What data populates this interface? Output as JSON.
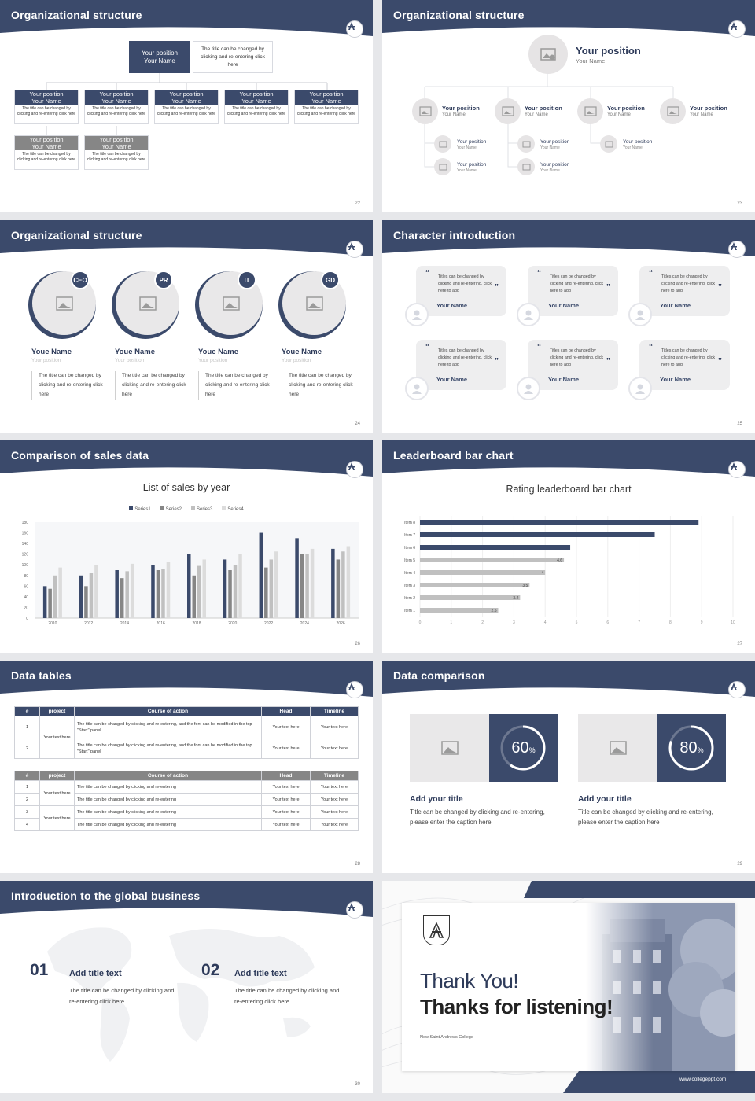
{
  "colors": {
    "navy": "#3b4a6b",
    "gray": "#868686",
    "light": "#e9e8e9"
  },
  "slides": {
    "s22": {
      "title": "Organizational structure",
      "page": "22",
      "top_box": {
        "position": "Your position",
        "name": "Your Name",
        "desc": "The title can be changed by clicking and re-entering click here"
      },
      "boxes": [
        {
          "position": "Your position",
          "name": "Your Name",
          "desc": "The title can be changed by clicking and re-entering click here"
        },
        {
          "position": "Your position",
          "name": "Your Name",
          "desc": "The title can be changed by clicking and re-entering click here"
        },
        {
          "position": "Your position",
          "name": "Your Name",
          "desc": "The title can be changed by clicking and re-entering click here"
        },
        {
          "position": "Your position",
          "name": "Your Name",
          "desc": "The title can be changed by clicking and re-entering click here"
        },
        {
          "position": "Your position",
          "name": "Your Name",
          "desc": "The title can be changed by clicking and re-entering click here"
        },
        {
          "position": "Your position",
          "name": "Your Name",
          "desc": "The title can be changed by clicking and re-entering click here"
        },
        {
          "position": "Your position",
          "name": "Your Name",
          "desc": "The title can be changed by clicking and re-entering click here"
        }
      ]
    },
    "s23": {
      "title": "Organizational structure",
      "page": "23",
      "top": {
        "position": "Your position",
        "name": "Your Name"
      },
      "level2": [
        {
          "position": "Your position",
          "name": "Your Name"
        },
        {
          "position": "Your position",
          "name": "Your Name"
        },
        {
          "position": "Your position",
          "name": "Your Name"
        },
        {
          "position": "Your position",
          "name": "Your Name"
        }
      ],
      "level3": [
        {
          "position": "Your position",
          "name": "Your Name"
        },
        {
          "position": "Your position",
          "name": "Your Name"
        },
        {
          "position": "Your position",
          "name": "Your Name"
        },
        {
          "position": "Your position",
          "name": "Your Name"
        },
        {
          "position": "Your position",
          "name": "Your Name"
        }
      ]
    },
    "s24": {
      "title": "Organizational structure",
      "page": "24",
      "people": [
        {
          "role": "CEO",
          "name": "Youe Name",
          "position": "Your position",
          "desc": "The title can be changed by clicking and re-entering click here"
        },
        {
          "role": "PR",
          "name": "Youe Name",
          "position": "Your position",
          "desc": "The title can be changed by clicking and re-entering click here"
        },
        {
          "role": "IT",
          "name": "Youe Name",
          "position": "Your position",
          "desc": "The title can be changed by clicking and re-entering click here"
        },
        {
          "role": "GD",
          "name": "Youe Name",
          "position": "Your position",
          "desc": "The title can be changed by clicking and re-entering click here"
        }
      ]
    },
    "s25": {
      "title": "Character introduction",
      "page": "25",
      "cards": [
        {
          "text": "Titles can be changed by clicking and re-entering, click here to add",
          "name": "Your Name"
        },
        {
          "text": "Titles can be changed by clicking and re-entering, click here to add",
          "name": "Your Name"
        },
        {
          "text": "Titles can be changed by clicking and re-entering, click here to add",
          "name": "Your Name"
        },
        {
          "text": "Titles can be changed by clicking and re-entering, click here to add",
          "name": "Your Name"
        },
        {
          "text": "Titles can be changed by clicking and re-entering, click here to add",
          "name": "Your Name"
        },
        {
          "text": "Titles can be changed by clicking and re-entering, click here to add",
          "name": "Your Name"
        }
      ]
    },
    "s26": {
      "title": "Comparison of sales data",
      "page": "26"
    },
    "s27": {
      "title": "Leaderboard bar chart",
      "page": "27"
    },
    "s28": {
      "title": "Data tables",
      "page": "28",
      "table1": {
        "headers": [
          "#",
          "project",
          "Course of action",
          "Head",
          "Timeline"
        ],
        "group": "Your text here",
        "rows": [
          {
            "n": "1",
            "action": "The title can be changed by clicking and re-entering, and the font can be modified in the top \"Start\" panel",
            "head": "Your text here",
            "time": "Your text here"
          },
          {
            "n": "2",
            "action": "The title can be changed by clicking and re-entering, and the font can be modified in the top \"Start\" panel",
            "head": "Your text here",
            "time": "Your text here"
          }
        ]
      },
      "table2": {
        "headers": [
          "#",
          "project",
          "Course of action",
          "Head",
          "Timeline"
        ],
        "groups": [
          "Your text here",
          "Your text here"
        ],
        "rows": [
          {
            "n": "1",
            "action": "The title can be changed by clicking and re-entering",
            "head": "Your text here",
            "time": "Your text here"
          },
          {
            "n": "2",
            "action": "The title can be changed by clicking and re-entering",
            "head": "Your text here",
            "time": "Your text here"
          },
          {
            "n": "3",
            "action": "The title can be changed by clicking and re-entering",
            "head": "Your text here",
            "time": "Your text here"
          },
          {
            "n": "4",
            "action": "The title can be changed by clicking and re-entering",
            "head": "Your text here",
            "time": "Your text here"
          }
        ]
      }
    },
    "s29": {
      "title": "Data comparison",
      "page": "29",
      "items": [
        {
          "value": "60",
          "unit": "%",
          "percent": 60,
          "heading": "Add your title",
          "caption": "Title can be changed by clicking and re-entering, please enter the caption here"
        },
        {
          "value": "80",
          "unit": "%",
          "percent": 80,
          "heading": "Add your title",
          "caption": "Title can be changed by clicking and re-entering, please enter the caption here"
        }
      ]
    },
    "s30": {
      "title": "Introduction to the global business",
      "page": "30",
      "items": [
        {
          "num": "01",
          "heading": "Add title text",
          "desc": "The title can be changed by clicking and re-entering click here"
        },
        {
          "num": "02",
          "heading": "Add title text",
          "desc": "The title can be changed by clicking and re-entering click here"
        }
      ]
    },
    "s31": {
      "line1": "Thank You!",
      "line2": "Thanks for listening!",
      "college": "New Saint Andrews College",
      "site": "www.collegeppt.com"
    }
  },
  "chart_data": [
    {
      "type": "bar",
      "title": "List of sales by year",
      "categories": [
        "2010",
        "2012",
        "2014",
        "2016",
        "2018",
        "2020",
        "2022",
        "2024",
        "2026"
      ],
      "series": [
        {
          "name": "Series1",
          "color": "#3b4a6b",
          "values": [
            60,
            80,
            90,
            100,
            120,
            110,
            160,
            150,
            130
          ]
        },
        {
          "name": "Series2",
          "color": "#868686",
          "values": [
            55,
            60,
            75,
            90,
            80,
            90,
            95,
            120,
            110
          ]
        },
        {
          "name": "Series3",
          "color": "#c0c0c0",
          "values": [
            80,
            85,
            88,
            92,
            98,
            100,
            110,
            120,
            125
          ]
        },
        {
          "name": "Series4",
          "color": "#dcdcdc",
          "values": [
            95,
            100,
            102,
            105,
            110,
            120,
            125,
            130,
            135
          ]
        }
      ],
      "ylim": [
        0,
        180
      ],
      "yticks": [
        "0",
        "20",
        "40",
        "60",
        "80",
        "100",
        "120",
        "140",
        "160",
        "180"
      ],
      "legend": "top"
    },
    {
      "type": "bar",
      "orientation": "horizontal",
      "title": "Rating leaderboard bar chart",
      "categories": [
        "Item 8",
        "Item 7",
        "Item 6",
        "Item 5",
        "Item 4",
        "Item 3",
        "Item 2",
        "Item 1"
      ],
      "values": [
        8.9,
        7.5,
        4.8,
        4.6,
        4,
        3.5,
        3.2,
        2.5
      ],
      "labels": [
        "",
        "",
        "",
        "4.6",
        "4",
        "3.5",
        "3.2",
        "2.5"
      ],
      "highlight": [
        "#3b4a6b",
        "#3b4a6b",
        "#3b4a6b",
        "#c0c0c0",
        "#c0c0c0",
        "#c0c0c0",
        "#c0c0c0",
        "#c0c0c0"
      ],
      "xlim": [
        0,
        10
      ],
      "xticks": [
        "0",
        "1",
        "2",
        "3",
        "4",
        "5",
        "6",
        "7",
        "8",
        "9",
        "10"
      ]
    }
  ]
}
